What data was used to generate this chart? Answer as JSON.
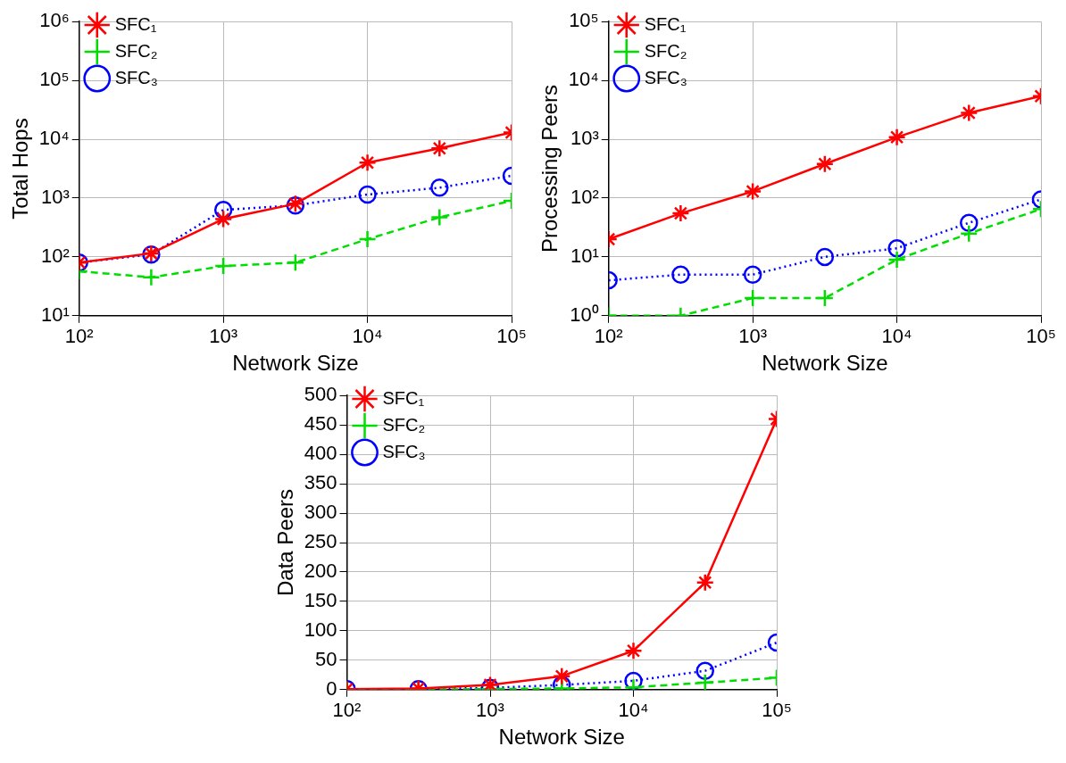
{
  "chart_data": [
    {
      "type": "line",
      "ylabel": "Total Hops",
      "xlabel": "Network Size",
      "log": "xy",
      "grid": true,
      "legend": "top left",
      "x": [
        100,
        316,
        1000,
        3162,
        10000,
        31623,
        100000
      ],
      "xlim": [
        100,
        100000
      ],
      "xticks": [
        {
          "value": 100,
          "label": "10²"
        },
        {
          "value": 1000,
          "label": "10³"
        },
        {
          "value": 10000,
          "label": "10⁴"
        },
        {
          "value": 100000,
          "label": "10⁵"
        }
      ],
      "ylim": [
        10,
        1000000
      ],
      "yticks": [
        {
          "value": 10,
          "label": "10¹"
        },
        {
          "value": 100,
          "label": "10²"
        },
        {
          "value": 1000,
          "label": "10³"
        },
        {
          "value": 10000,
          "label": "10⁴"
        },
        {
          "value": 100000,
          "label": "10⁵"
        },
        {
          "value": 1000000,
          "label": "10⁶"
        }
      ],
      "series": [
        {
          "name": "SFC₁",
          "color": "#ff0000",
          "marker": "cross",
          "line_style": "solid",
          "values": [
            80,
            115,
            440,
            800,
            4000,
            7000,
            13000
          ]
        },
        {
          "name": "SFC₂",
          "color": "#00dd00",
          "marker": "cross",
          "line_style": "dashed",
          "values": [
            57,
            45,
            70,
            80,
            200,
            470,
            900
          ]
        },
        {
          "name": "SFC₃",
          "color": "#0000ff",
          "marker": "circle",
          "line_style": "dotted",
          "values": [
            80,
            110,
            630,
            750,
            1150,
            1500,
            2400
          ]
        }
      ]
    },
    {
      "type": "line",
      "ylabel": "Processing Peers",
      "xlabel": "Network Size",
      "log": "xy",
      "grid": true,
      "legend": "top left",
      "x": [
        100,
        316,
        1000,
        3162,
        10000,
        31623,
        100000
      ],
      "xlim": [
        100,
        100000
      ],
      "xticks": [
        {
          "value": 100,
          "label": "10²"
        },
        {
          "value": 1000,
          "label": "10³"
        },
        {
          "value": 10000,
          "label": "10⁴"
        },
        {
          "value": 100000,
          "label": "10⁵"
        }
      ],
      "ylim": [
        1,
        100000
      ],
      "yticks": [
        {
          "value": 1,
          "label": "10⁰"
        },
        {
          "value": 10,
          "label": "10¹"
        },
        {
          "value": 100,
          "label": "10²"
        },
        {
          "value": 1000,
          "label": "10³"
        },
        {
          "value": 10000,
          "label": "10⁴"
        },
        {
          "value": 100000,
          "label": "10⁵"
        }
      ],
      "series": [
        {
          "name": "SFC₁",
          "color": "#ff0000",
          "marker": "cross",
          "line_style": "solid",
          "values": [
            20,
            55,
            130,
            380,
            1080,
            2800,
            5400
          ]
        },
        {
          "name": "SFC₂",
          "color": "#00dd00",
          "marker": "cross",
          "line_style": "dashed",
          "values": [
            1,
            1,
            2,
            2,
            9,
            25,
            65
          ]
        },
        {
          "name": "SFC₃",
          "color": "#0000ff",
          "marker": "circle",
          "line_style": "dotted",
          "values": [
            4,
            5,
            5,
            10,
            14,
            38,
            95
          ]
        }
      ]
    },
    {
      "type": "line",
      "ylabel": "Data Peers",
      "xlabel": "Network Size",
      "log": "x",
      "grid": true,
      "legend": "top left",
      "x": [
        100,
        316,
        1000,
        3162,
        10000,
        31623,
        100000
      ],
      "xlim": [
        100,
        100000
      ],
      "xticks": [
        {
          "value": 100,
          "label": "10²"
        },
        {
          "value": 1000,
          "label": "10³"
        },
        {
          "value": 10000,
          "label": "10⁴"
        },
        {
          "value": 100000,
          "label": "10⁵"
        }
      ],
      "ylim": [
        0,
        500
      ],
      "yticks": [
        0,
        50,
        100,
        150,
        200,
        250,
        300,
        350,
        400,
        450,
        500
      ],
      "series": [
        {
          "name": "SFC₁",
          "color": "#ff0000",
          "marker": "cross",
          "line_style": "solid",
          "values": [
            1,
            2,
            8,
            23,
            66,
            182,
            460
          ]
        },
        {
          "name": "SFC₂",
          "color": "#00dd00",
          "marker": "cross",
          "line_style": "dashed",
          "values": [
            0,
            0,
            1,
            2,
            4,
            12,
            20
          ]
        },
        {
          "name": "SFC₃",
          "color": "#0000ff",
          "marker": "circle",
          "line_style": "dotted",
          "values": [
            1,
            1,
            3,
            8,
            15,
            32,
            80
          ]
        }
      ]
    }
  ]
}
